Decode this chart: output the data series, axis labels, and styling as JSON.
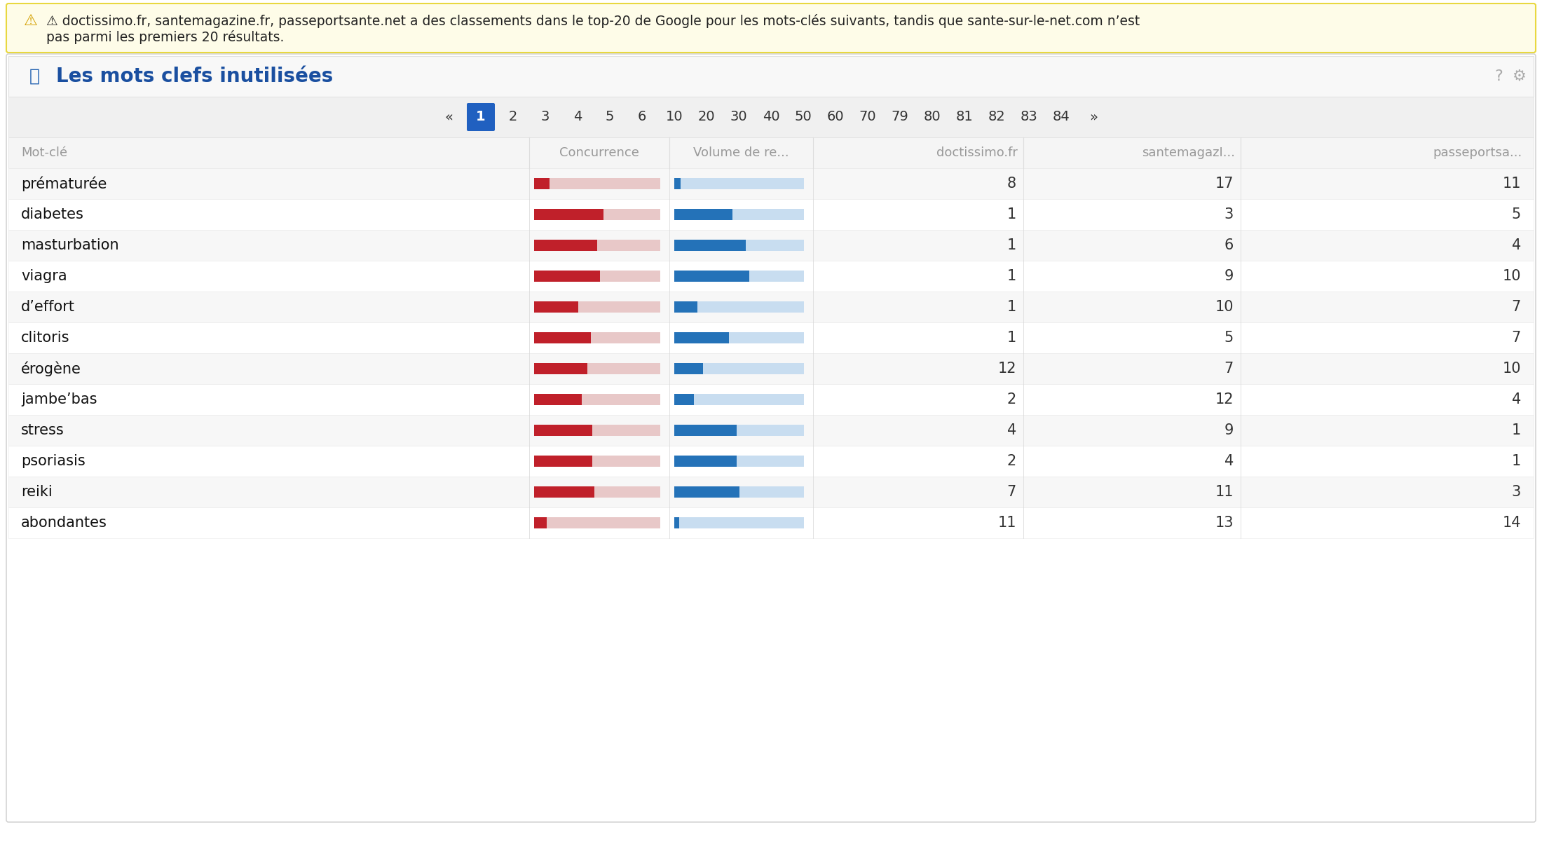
{
  "title": "Les mots clefs inutilisées",
  "warning_line1": "⚠ doctissimo.fr, santemagazine.fr, passeportsante.net a des classements dans le top-20 de Google pour les mots-clés suivants, tandis que sante-sur-le-net.com n’est",
  "warning_line2": "pas parmi les premiers 20 résultats.",
  "pagination": [
    "«",
    "1",
    "2",
    "3",
    "4",
    "5",
    "6",
    "10",
    "20",
    "30",
    "40",
    "50",
    "60",
    "70",
    "79",
    "80",
    "81",
    "82",
    "83",
    "84",
    "»"
  ],
  "active_page": "1",
  "rows": [
    {
      "keyword": "prématurée",
      "concurrence": 0.12,
      "volume": 0.05,
      "doctissimo": 8,
      "santemag": 17,
      "passeport": 11
    },
    {
      "keyword": "diabetes",
      "concurrence": 0.55,
      "volume": 0.45,
      "doctissimo": 1,
      "santemag": 3,
      "passeport": 5
    },
    {
      "keyword": "masturbation",
      "concurrence": 0.5,
      "volume": 0.55,
      "doctissimo": 1,
      "santemag": 6,
      "passeport": 4
    },
    {
      "keyword": "viagra",
      "concurrence": 0.52,
      "volume": 0.58,
      "doctissimo": 1,
      "santemag": 9,
      "passeport": 10
    },
    {
      "keyword": "d’effort",
      "concurrence": 0.35,
      "volume": 0.18,
      "doctissimo": 1,
      "santemag": 10,
      "passeport": 7
    },
    {
      "keyword": "clitoris",
      "concurrence": 0.45,
      "volume": 0.42,
      "doctissimo": 1,
      "santemag": 5,
      "passeport": 7
    },
    {
      "keyword": "érogène",
      "concurrence": 0.42,
      "volume": 0.22,
      "doctissimo": 12,
      "santemag": 7,
      "passeport": 10
    },
    {
      "keyword": "jambe’bas",
      "concurrence": 0.38,
      "volume": 0.15,
      "doctissimo": 2,
      "santemag": 12,
      "passeport": 4
    },
    {
      "keyword": "stress",
      "concurrence": 0.46,
      "volume": 0.48,
      "doctissimo": 4,
      "santemag": 9,
      "passeport": 1
    },
    {
      "keyword": "psoriasis",
      "concurrence": 0.46,
      "volume": 0.48,
      "doctissimo": 2,
      "santemag": 4,
      "passeport": 1
    },
    {
      "keyword": "reiki",
      "concurrence": 0.48,
      "volume": 0.5,
      "doctissimo": 7,
      "santemag": 11,
      "passeport": 3
    },
    {
      "keyword": "abondantes",
      "concurrence": 0.1,
      "volume": 0.04,
      "doctissimo": 11,
      "santemag": 13,
      "passeport": 14
    }
  ],
  "bg_color": "#ffffff",
  "warning_bg": "#fefce8",
  "warning_border": "#e8d840",
  "title_color": "#1a4fa0",
  "header_text_color": "#999999",
  "bar_red": "#c0202a",
  "bar_red_bg": "#e8c8c8",
  "bar_blue": "#2472b8",
  "bar_blue_bg": "#c8ddf0",
  "pagination_active_bg": "#2060c0",
  "pagination_active_fg": "#ffffff",
  "border_color": "#e0e0e0",
  "row_alt": "#f7f7f7",
  "row_even": "#ffffff",
  "number_color": "#333333",
  "keyword_color": "#111111"
}
